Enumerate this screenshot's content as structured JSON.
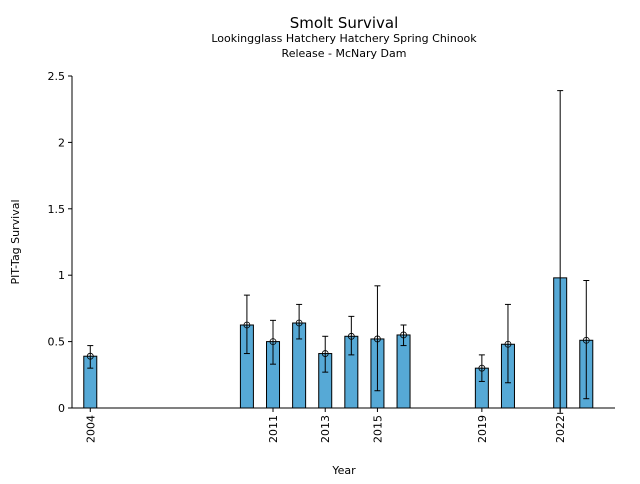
{
  "chart_data": {
    "type": "bar",
    "title": "Smolt Survival",
    "subtitle": [
      "Lookingglass Hatchery Hatchery Spring Chinook",
      "Release - McNary Dam"
    ],
    "xlabel": "Year",
    "ylabel": "PIT-Tag Survival",
    "ylim": [
      0,
      2.5
    ],
    "xlim": [
      2003.3,
      2024.1
    ],
    "yticks": [
      0,
      0.5,
      1,
      1.5,
      2,
      2.5
    ],
    "ytick_labels": [
      "0",
      "0.5",
      "1",
      "1.5",
      "2",
      "2.5"
    ],
    "xticks": [
      2004,
      2011,
      2013,
      2015,
      2019,
      2022
    ],
    "xtick_labels": [
      "2004",
      "2011",
      "2013",
      "2015",
      "2019",
      "2022"
    ],
    "bar_color": "#56a9d6",
    "grid": false,
    "points": [
      {
        "year": 2004,
        "value": 0.39,
        "lower": 0.3,
        "upper": 0.47,
        "marker": true
      },
      {
        "year": 2010,
        "value": 0.625,
        "lower": 0.41,
        "upper": 0.85,
        "marker": true
      },
      {
        "year": 2011,
        "value": 0.5,
        "lower": 0.33,
        "upper": 0.66,
        "marker": true
      },
      {
        "year": 2012,
        "value": 0.64,
        "lower": 0.52,
        "upper": 0.78,
        "marker": true
      },
      {
        "year": 2013,
        "value": 0.41,
        "lower": 0.27,
        "upper": 0.54,
        "marker": true
      },
      {
        "year": 2014,
        "value": 0.54,
        "lower": 0.4,
        "upper": 0.69,
        "marker": true
      },
      {
        "year": 2015,
        "value": 0.52,
        "lower": 0.13,
        "upper": 0.92,
        "marker": true
      },
      {
        "year": 2016,
        "value": 0.55,
        "lower": 0.47,
        "upper": 0.625,
        "marker": true
      },
      {
        "year": 2019,
        "value": 0.3,
        "lower": 0.2,
        "upper": 0.4,
        "marker": true
      },
      {
        "year": 2020,
        "value": 0.48,
        "lower": 0.19,
        "upper": 0.78,
        "marker": true
      },
      {
        "year": 2022,
        "value": 0.98,
        "lower": -0.04,
        "upper": 2.39,
        "marker": false
      },
      {
        "year": 2023,
        "value": 0.51,
        "lower": 0.07,
        "upper": 0.96,
        "marker": true
      }
    ]
  }
}
